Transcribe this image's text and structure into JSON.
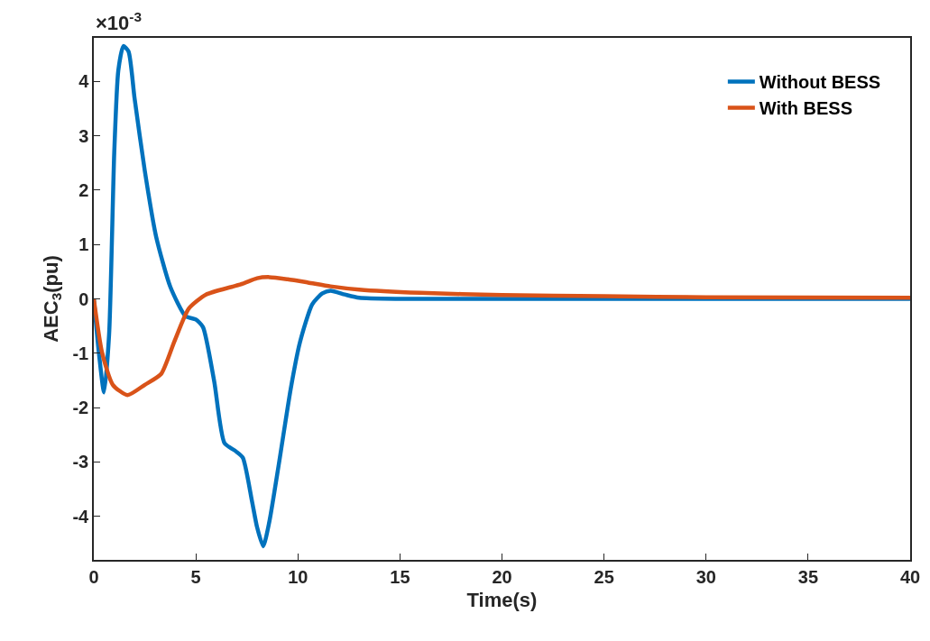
{
  "chart_data": {
    "type": "line",
    "xlabel": "Time(s)",
    "ylabel": "AEC$_{3}$(pu)",
    "annotations": [
      "×10$^{-3}$"
    ],
    "xlim": [
      0,
      40
    ],
    "xticks": [
      0,
      5,
      10,
      15,
      20,
      25,
      30,
      35,
      40
    ],
    "ylim": [
      -4.8,
      4.8
    ],
    "yticks": [
      -4,
      -3,
      -2,
      -1,
      0,
      1,
      2,
      3,
      4
    ],
    "legend": "top right",
    "marker": "none",
    "line_style": "solid",
    "series": [
      {
        "name": "Without BESS",
        "color": "#0072bd",
        "x": [
          0,
          0.25,
          0.5,
          0.75,
          1.0,
          1.2,
          1.45,
          1.7,
          2.0,
          2.5,
          3.05,
          3.75,
          4.5,
          5.0,
          5.35,
          5.9,
          6.4,
          6.95,
          7.3,
          7.75,
          8.0,
          8.3,
          8.6,
          9.07,
          9.65,
          10.1,
          10.7,
          11.2,
          11.6,
          12.3,
          13.0,
          15,
          20,
          30,
          40
        ],
        "values": [
          0,
          -1.0,
          -1.72,
          -0.65,
          2.68,
          4.2,
          4.65,
          4.55,
          3.68,
          2.35,
          1.15,
          0.22,
          -0.32,
          -0.38,
          -0.52,
          -1.52,
          -2.65,
          -2.8,
          -2.92,
          -3.72,
          -4.2,
          -4.55,
          -4.1,
          -3.03,
          -1.65,
          -0.8,
          -0.1,
          0.1,
          0.15,
          0.08,
          0.02,
          0,
          0,
          0,
          0
        ]
      },
      {
        "name": "With BESS",
        "color": "#d95319",
        "x": [
          0,
          0.4,
          0.93,
          1.65,
          2.5,
          3.3,
          3.95,
          4.65,
          5.5,
          6.75,
          7.3,
          8.0,
          8.6,
          9.5,
          10.5,
          11.6,
          13.0,
          16,
          20,
          25,
          30,
          40
        ],
        "values": [
          0,
          -0.98,
          -1.58,
          -1.77,
          -1.58,
          -1.38,
          -0.78,
          -0.18,
          0.08,
          0.22,
          0.28,
          0.38,
          0.4,
          0.36,
          0.3,
          0.23,
          0.17,
          0.11,
          0.07,
          0.05,
          0.03,
          0.02
        ]
      }
    ]
  }
}
